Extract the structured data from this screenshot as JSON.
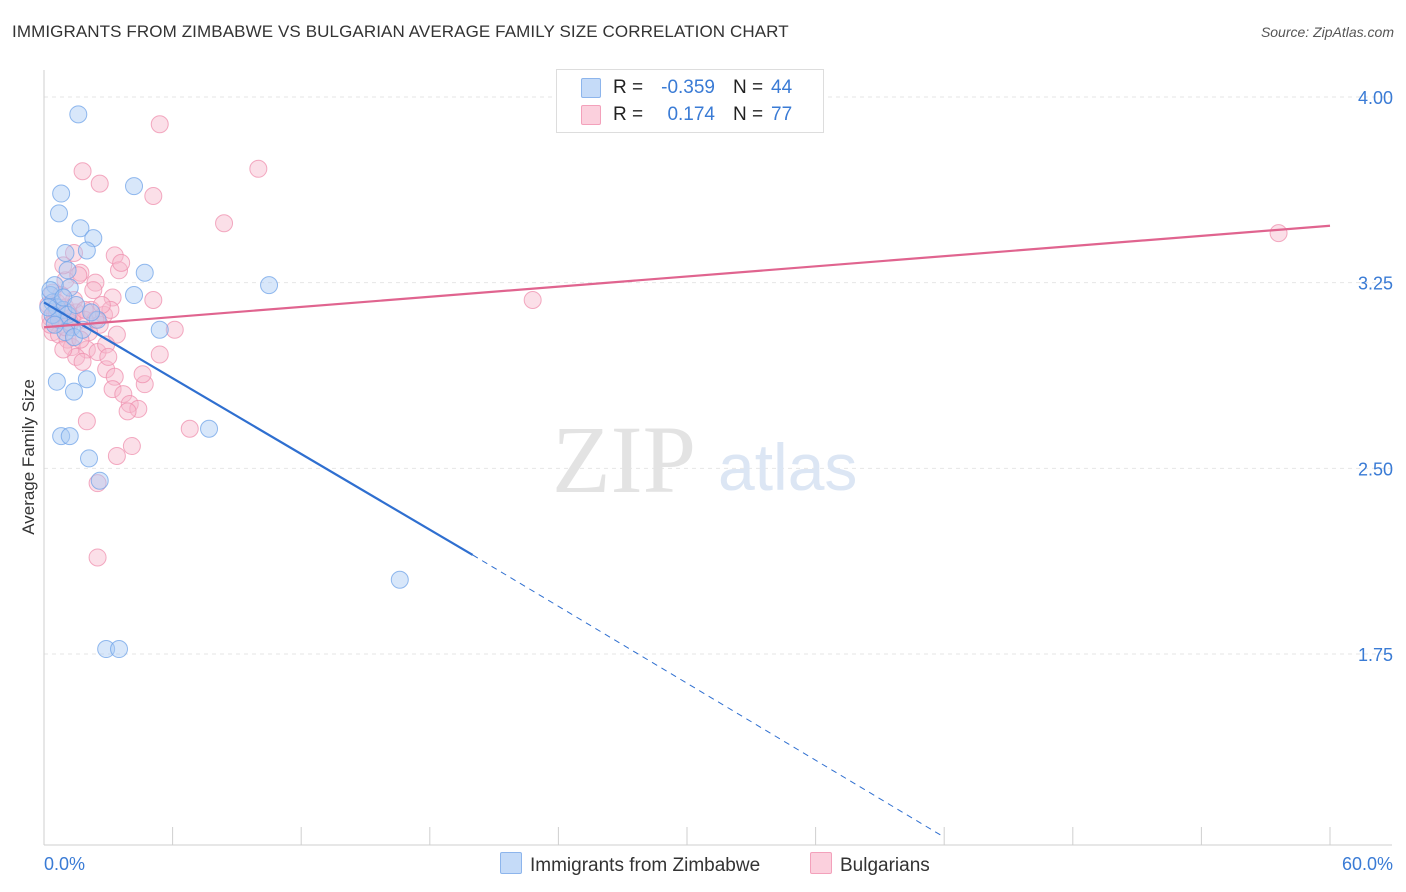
{
  "title": "IMMIGRANTS FROM ZIMBABWE VS BULGARIAN AVERAGE FAMILY SIZE CORRELATION CHART",
  "source": "Source: ZipAtlas.com",
  "watermark": {
    "zip": "ZIP",
    "atlas": "atlas"
  },
  "legend_top": {
    "rows": [
      {
        "r_label": "R =",
        "r_value": "-0.359",
        "n_label": "N =",
        "n_value": "44",
        "color": "#a9c9f5"
      },
      {
        "r_label": "R =",
        "r_value": "0.174",
        "n_label": "N =",
        "n_value": "77",
        "color": "#f7b8cb"
      }
    ]
  },
  "legend_bottom": {
    "items": [
      {
        "label": "Immigrants from Zimbabwe",
        "color": "#a9c9f5"
      },
      {
        "label": "Bulgarians",
        "color": "#f7b8cb"
      }
    ]
  },
  "chart_data": {
    "type": "scatter",
    "title": "IMMIGRANTS FROM ZIMBABWE VS BULGARIAN AVERAGE FAMILY SIZE CORRELATION CHART",
    "xlabel": "",
    "ylabel": "Average Family Size",
    "xlim": [
      0,
      60
    ],
    "ylim": [
      1.0,
      4.1
    ],
    "x_tick_labels": {
      "left": "0.0%",
      "right": "60.0%"
    },
    "y_ticks": [
      {
        "value": 4.0,
        "label": "4.00"
      },
      {
        "value": 3.25,
        "label": "3.25"
      },
      {
        "value": 2.5,
        "label": "2.50"
      },
      {
        "value": 1.75,
        "label": "1.75"
      }
    ],
    "grid": true,
    "series": [
      {
        "name": "Immigrants from Zimbabwe",
        "color": "#6fa3e8",
        "fill": "#a9c9f5",
        "line_color": "#2f6fd0",
        "points": [
          [
            1.6,
            3.93
          ],
          [
            0.8,
            3.61
          ],
          [
            0.7,
            3.53
          ],
          [
            1.7,
            3.47
          ],
          [
            2.3,
            3.43
          ],
          [
            2.0,
            3.38
          ],
          [
            1.0,
            3.37
          ],
          [
            1.1,
            3.3
          ],
          [
            1.2,
            3.23
          ],
          [
            0.5,
            3.24
          ],
          [
            0.3,
            3.2
          ],
          [
            0.4,
            3.17
          ],
          [
            0.6,
            3.15
          ],
          [
            0.9,
            3.14
          ],
          [
            1.1,
            3.12
          ],
          [
            0.7,
            3.1
          ],
          [
            1.3,
            3.07
          ],
          [
            1.0,
            3.05
          ],
          [
            1.4,
            3.03
          ],
          [
            2.5,
            3.1
          ],
          [
            4.2,
            3.64
          ],
          [
            4.7,
            3.29
          ],
          [
            4.2,
            3.2
          ],
          [
            5.4,
            3.06
          ],
          [
            10.5,
            3.24
          ],
          [
            0.6,
            2.85
          ],
          [
            1.4,
            2.81
          ],
          [
            2.0,
            2.86
          ],
          [
            0.8,
            2.63
          ],
          [
            1.2,
            2.63
          ],
          [
            2.1,
            2.54
          ],
          [
            2.6,
            2.45
          ],
          [
            7.7,
            2.66
          ],
          [
            16.6,
            2.05
          ],
          [
            2.9,
            1.77
          ],
          [
            3.5,
            1.77
          ],
          [
            0.4,
            3.12
          ],
          [
            0.2,
            3.15
          ],
          [
            0.5,
            3.08
          ],
          [
            1.8,
            3.06
          ],
          [
            0.3,
            3.22
          ],
          [
            0.9,
            3.19
          ],
          [
            1.5,
            3.16
          ],
          [
            2.2,
            3.13
          ]
        ],
        "trend": {
          "x0": 0.0,
          "y0": 3.17,
          "x1": 20.0,
          "y1": 2.15,
          "dashed_to_x": 42.0,
          "dashed_to_y": 1.01
        }
      },
      {
        "name": "Bulgarians",
        "color": "#ef8fae",
        "fill": "#f7b8cb",
        "line_color": "#e0648f",
        "points": [
          [
            5.4,
            3.89
          ],
          [
            10.0,
            3.71
          ],
          [
            2.6,
            3.65
          ],
          [
            1.8,
            3.7
          ],
          [
            5.1,
            3.6
          ],
          [
            8.4,
            3.49
          ],
          [
            1.4,
            3.37
          ],
          [
            3.3,
            3.36
          ],
          [
            3.5,
            3.3
          ],
          [
            1.7,
            3.29
          ],
          [
            2.4,
            3.25
          ],
          [
            1.0,
            3.26
          ],
          [
            3.2,
            3.19
          ],
          [
            5.1,
            3.18
          ],
          [
            0.4,
            3.21
          ],
          [
            0.6,
            3.17
          ],
          [
            1.0,
            3.15
          ],
          [
            1.5,
            3.13
          ],
          [
            2.2,
            3.14
          ],
          [
            2.8,
            3.12
          ],
          [
            3.1,
            3.14
          ],
          [
            0.3,
            3.11
          ],
          [
            0.5,
            3.09
          ],
          [
            0.8,
            3.1
          ],
          [
            1.2,
            3.08
          ],
          [
            1.9,
            3.1
          ],
          [
            2.6,
            3.08
          ],
          [
            0.4,
            3.05
          ],
          [
            0.7,
            3.04
          ],
          [
            1.1,
            3.02
          ],
          [
            3.4,
            3.04
          ],
          [
            6.1,
            3.06
          ],
          [
            1.3,
            2.99
          ],
          [
            2.0,
            2.98
          ],
          [
            2.5,
            2.97
          ],
          [
            1.5,
            2.95
          ],
          [
            1.8,
            2.93
          ],
          [
            5.4,
            2.96
          ],
          [
            2.9,
            2.9
          ],
          [
            3.3,
            2.87
          ],
          [
            4.7,
            2.84
          ],
          [
            3.2,
            2.82
          ],
          [
            3.7,
            2.8
          ],
          [
            4.0,
            2.76
          ],
          [
            4.4,
            2.74
          ],
          [
            3.9,
            2.73
          ],
          [
            2.0,
            2.69
          ],
          [
            6.8,
            2.66
          ],
          [
            4.1,
            2.59
          ],
          [
            3.4,
            2.55
          ],
          [
            2.5,
            2.44
          ],
          [
            2.5,
            2.14
          ],
          [
            22.8,
            3.18
          ],
          [
            57.6,
            3.45
          ],
          [
            0.9,
            3.32
          ],
          [
            1.6,
            3.28
          ],
          [
            2.3,
            3.22
          ],
          [
            0.5,
            3.12
          ],
          [
            1.0,
            3.07
          ],
          [
            2.9,
            3.0
          ],
          [
            0.2,
            3.16
          ],
          [
            0.6,
            3.13
          ],
          [
            1.3,
            3.11
          ],
          [
            2.1,
            3.05
          ],
          [
            3.6,
            3.33
          ],
          [
            1.4,
            3.18
          ],
          [
            0.8,
            3.2
          ],
          [
            2.7,
            3.16
          ],
          [
            1.7,
            3.02
          ],
          [
            0.3,
            3.08
          ],
          [
            1.1,
            3.13
          ],
          [
            2.4,
            3.1
          ],
          [
            3.0,
            2.95
          ],
          [
            4.6,
            2.88
          ],
          [
            0.9,
            2.98
          ],
          [
            1.9,
            3.14
          ],
          [
            1.2,
            3.09
          ]
        ],
        "trend": {
          "x0": 0.0,
          "y0": 3.07,
          "x1": 60.0,
          "y1": 3.48
        }
      }
    ]
  }
}
